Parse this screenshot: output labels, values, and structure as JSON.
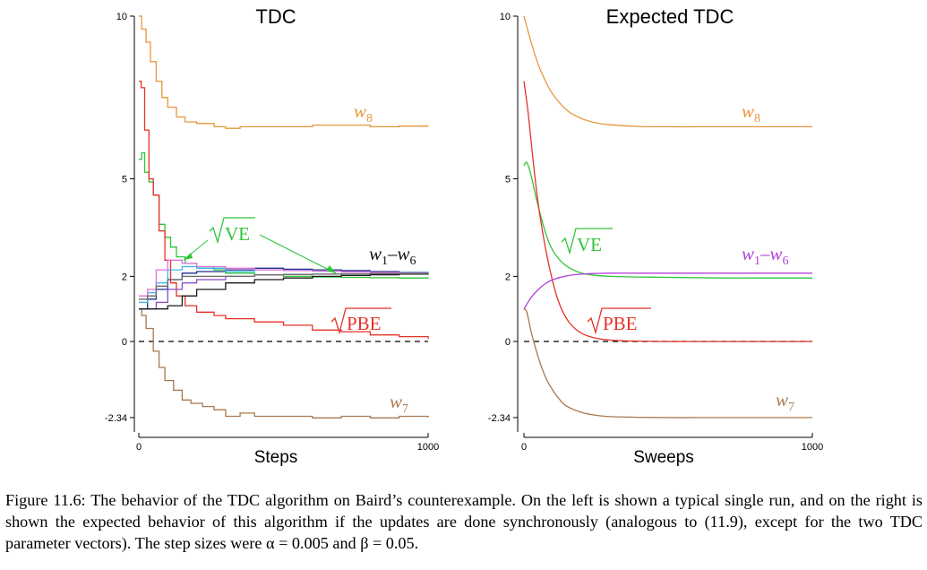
{
  "chart_data": [
    {
      "type": "line",
      "title": "TDC",
      "xlabel": "Steps",
      "ylabel": "",
      "xlim": [
        0,
        1000
      ],
      "ylim": [
        -2.7,
        10
      ],
      "x_ticks": [
        "0",
        "1000"
      ],
      "y_ticks": [
        {
          "value": 10,
          "label": "10"
        },
        {
          "value": 5,
          "label": "5"
        },
        {
          "value": 2,
          "label": "2"
        },
        {
          "value": 0,
          "label": "0"
        },
        {
          "value": -2.34,
          "label": "-2.34"
        }
      ],
      "zero_line": true,
      "series": [
        {
          "name": "w8",
          "color": "#e8963a",
          "x": [
            0,
            10,
            25,
            40,
            60,
            80,
            100,
            130,
            160,
            200,
            260,
            300,
            350,
            400,
            500,
            600,
            700,
            800,
            900,
            1000
          ],
          "y": [
            10,
            9.6,
            9.2,
            8.6,
            8.0,
            7.5,
            7.2,
            6.9,
            6.75,
            6.7,
            6.6,
            6.55,
            6.6,
            6.6,
            6.6,
            6.65,
            6.65,
            6.6,
            6.62,
            6.6
          ]
        },
        {
          "name": "sqrt(VE)",
          "color": "#2ec43a",
          "x": [
            0,
            10,
            20,
            35,
            50,
            70,
            90,
            110,
            130,
            160,
            200,
            260,
            300,
            400,
            500,
            600,
            700,
            800,
            900,
            1000
          ],
          "y": [
            5.6,
            5.8,
            5.2,
            4.9,
            4.5,
            3.6,
            3.2,
            2.9,
            2.6,
            2.4,
            2.3,
            2.2,
            2.1,
            2.05,
            2.0,
            1.98,
            1.97,
            1.96,
            1.95,
            1.94
          ]
        },
        {
          "name": "sqrt(PBE)",
          "color": "#e53228",
          "x": [
            0,
            8,
            20,
            35,
            50,
            70,
            90,
            110,
            130,
            160,
            200,
            260,
            300,
            400,
            500,
            600,
            700,
            800,
            900,
            1000
          ],
          "y": [
            8.0,
            7.8,
            6.5,
            5.0,
            4.5,
            3.4,
            2.5,
            1.8,
            1.4,
            1.1,
            0.9,
            0.8,
            0.7,
            0.6,
            0.5,
            0.35,
            0.3,
            0.2,
            0.15,
            0.08
          ]
        },
        {
          "name": "w7",
          "color": "#a8784e",
          "x": [
            0,
            10,
            25,
            50,
            70,
            90,
            120,
            150,
            180,
            220,
            260,
            300,
            350,
            400,
            500,
            600,
            700,
            800,
            900,
            1000
          ],
          "y": [
            1.0,
            0.8,
            0.4,
            -0.3,
            -0.8,
            -1.2,
            -1.5,
            -1.8,
            -1.9,
            -2.0,
            -2.1,
            -2.3,
            -2.2,
            -2.3,
            -2.3,
            -2.35,
            -2.3,
            -2.35,
            -2.3,
            -2.34
          ]
        },
        {
          "name": "w1",
          "color": "#1f2f8c",
          "x": [
            0,
            30,
            60,
            100,
            150,
            200,
            300,
            400,
            500,
            600,
            700,
            800,
            900,
            1000
          ],
          "y": [
            1.0,
            1.3,
            1.6,
            1.9,
            2.1,
            2.15,
            2.2,
            2.25,
            2.22,
            2.2,
            2.18,
            2.15,
            2.12,
            2.1
          ]
        },
        {
          "name": "w2",
          "color": "#38b8e8",
          "x": [
            0,
            30,
            60,
            100,
            150,
            200,
            300,
            400,
            500,
            600,
            700,
            800,
            900,
            1000
          ],
          "y": [
            1.2,
            1.5,
            1.8,
            2.2,
            2.3,
            2.25,
            2.15,
            2.2,
            2.18,
            2.16,
            2.14,
            2.12,
            2.11,
            2.1
          ]
        },
        {
          "name": "w3",
          "color": "#e070d8",
          "x": [
            0,
            30,
            60,
            100,
            150,
            200,
            300,
            400,
            500,
            600,
            700,
            800,
            900,
            1000
          ],
          "y": [
            1.4,
            1.6,
            2.2,
            2.5,
            2.4,
            2.3,
            2.25,
            2.2,
            2.18,
            2.16,
            2.14,
            2.12,
            2.1,
            2.1
          ]
        },
        {
          "name": "w4",
          "color": "#8a4cc8",
          "x": [
            0,
            30,
            60,
            100,
            150,
            200,
            300,
            400,
            500,
            600,
            700,
            800,
            900,
            1000
          ],
          "y": [
            1.0,
            1.0,
            1.2,
            1.6,
            1.8,
            1.9,
            2.0,
            2.05,
            2.06,
            2.07,
            2.08,
            2.08,
            2.09,
            2.1
          ]
        },
        {
          "name": "w5",
          "color": "#1a1a1a",
          "x": [
            0,
            30,
            60,
            100,
            150,
            200,
            300,
            400,
            500,
            600,
            700,
            800,
            900,
            1000
          ],
          "y": [
            1.0,
            1.0,
            1.0,
            1.1,
            1.4,
            1.6,
            1.8,
            1.9,
            1.95,
            2.0,
            2.03,
            2.05,
            2.07,
            2.08
          ]
        },
        {
          "name": "w6",
          "color": "#6a6a6a",
          "x": [
            0,
            30,
            60,
            100,
            150,
            200,
            300,
            400,
            500,
            600,
            700,
            800,
            900,
            1000
          ],
          "y": [
            1.3,
            1.4,
            1.7,
            1.9,
            2.0,
            2.0,
            2.0,
            2.05,
            2.06,
            2.07,
            2.08,
            2.09,
            2.09,
            2.1
          ]
        }
      ]
    },
    {
      "type": "line",
      "title": "Expected TDC",
      "xlabel": "Sweeps",
      "ylabel": "",
      "xlim": [
        0,
        1000
      ],
      "ylim": [
        -2.7,
        10
      ],
      "x_ticks": [
        "0",
        "1000"
      ],
      "y_ticks": [
        {
          "value": 10,
          "label": "10"
        },
        {
          "value": 5,
          "label": "5"
        },
        {
          "value": 2,
          "label": "2"
        },
        {
          "value": 0,
          "label": "0"
        },
        {
          "value": -2.34,
          "label": "-2.34"
        }
      ],
      "zero_line": true,
      "series": [
        {
          "name": "w8",
          "color": "#e8963a",
          "x": [
            0,
            25,
            50,
            75,
            100,
            150,
            200,
            250,
            300,
            400,
            500,
            600,
            700,
            800,
            900,
            1000
          ],
          "y": [
            10,
            9.2,
            8.5,
            8.0,
            7.6,
            7.1,
            6.85,
            6.72,
            6.66,
            6.61,
            6.6,
            6.6,
            6.6,
            6.6,
            6.6,
            6.6
          ]
        },
        {
          "name": "sqrt(VE)",
          "color": "#2ec43a",
          "x": [
            0,
            10,
            25,
            40,
            60,
            80,
            100,
            130,
            160,
            200,
            250,
            300,
            400,
            500,
            600,
            700,
            800,
            900,
            1000
          ],
          "y": [
            5.4,
            5.5,
            5.1,
            4.5,
            3.8,
            3.2,
            2.8,
            2.45,
            2.25,
            2.1,
            2.03,
            2.0,
            1.98,
            1.97,
            1.96,
            1.95,
            1.95,
            1.95,
            1.95
          ]
        },
        {
          "name": "sqrt(PBE)",
          "color": "#e53228",
          "x": [
            0,
            15,
            30,
            50,
            70,
            90,
            110,
            130,
            160,
            200,
            250,
            300,
            350,
            400,
            500,
            600,
            800,
            1000
          ],
          "y": [
            8.0,
            7.0,
            5.7,
            4.2,
            3.1,
            2.2,
            1.5,
            1.0,
            0.55,
            0.25,
            0.1,
            0.04,
            0.02,
            0.01,
            0.0,
            0.0,
            0.0,
            0.0
          ]
        },
        {
          "name": "w1-w6",
          "color": "#b040d8",
          "x": [
            0,
            25,
            50,
            75,
            100,
            150,
            200,
            250,
            300,
            400,
            500,
            600,
            700,
            800,
            900,
            1000
          ],
          "y": [
            1.0,
            1.35,
            1.6,
            1.78,
            1.9,
            2.02,
            2.07,
            2.09,
            2.1,
            2.1,
            2.1,
            2.1,
            2.1,
            2.1,
            2.1,
            2.1
          ]
        },
        {
          "name": "w7",
          "color": "#a8784e",
          "x": [
            0,
            10,
            25,
            50,
            75,
            100,
            125,
            150,
            200,
            250,
            300,
            400,
            500,
            600,
            700,
            800,
            900,
            1000
          ],
          "y": [
            1.0,
            0.9,
            0.3,
            -0.5,
            -1.1,
            -1.5,
            -1.8,
            -2.0,
            -2.18,
            -2.27,
            -2.31,
            -2.33,
            -2.34,
            -2.34,
            -2.34,
            -2.34,
            -2.34,
            -2.34
          ]
        }
      ]
    }
  ],
  "labels_left": {
    "w8": "w",
    "w8_sub": "8",
    "ve": "VE",
    "w16_a": "w",
    "w16_a_sub": "1",
    "w16_dash": "–",
    "w16_b": "w",
    "w16_b_sub": "6",
    "pbe": "PBE",
    "w7": "w",
    "w7_sub": "7"
  },
  "labels_right": {
    "w8": "w",
    "w8_sub": "8",
    "ve": "VE",
    "w16_a": "w",
    "w16_a_sub": "1",
    "w16_dash": "–",
    "w16_b": "w",
    "w16_b_sub": "6",
    "pbe": "PBE",
    "w7": "w",
    "w7_sub": "7"
  },
  "caption": "Figure 11.6: The behavior of the TDC algorithm on Baird’s counterexample. On the left is shown a typical single run, and on the right is shown the expected behavior of this algorithm if the updates are done synchronously (analogous to (11.9), except for the two TDC parameter vectors). The step sizes were α = 0.005 and β = 0.05."
}
